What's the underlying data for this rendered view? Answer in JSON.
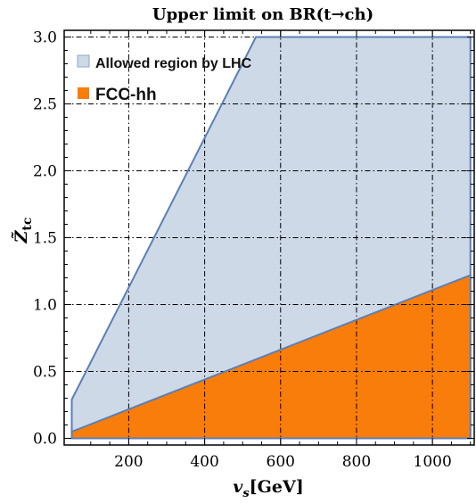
{
  "chart_data": {
    "type": "area",
    "title": "Upper limit on BR(t→ch)",
    "xlabel": {
      "main": "v",
      "sub": "s",
      "rest": "[GeV]"
    },
    "ylabel": {
      "main": "Z̃",
      "sub": "tc"
    },
    "xlim": [
      30,
      1110
    ],
    "ylim": [
      -0.05,
      3.05
    ],
    "xticks": [
      200,
      400,
      600,
      800,
      1000
    ],
    "xtick_labels": [
      "200",
      "400",
      "600",
      "800",
      "1000"
    ],
    "yticks": [
      0.0,
      0.5,
      1.0,
      1.5,
      2.0,
      2.5,
      3.0
    ],
    "ytick_labels": [
      "0.0",
      "0.5",
      "1.0",
      "1.5",
      "2.0",
      "2.5",
      "3.0"
    ],
    "grid": true,
    "legend_position": "top-left",
    "series": [
      {
        "name": "Allowed region by LHC",
        "kind": "polygon",
        "color": "#cdd9e6",
        "edge": "#5c7fb5",
        "x": [
          50,
          50,
          535,
          1100,
          1100,
          50
        ],
        "y": [
          0.0,
          0.29,
          3.0,
          3.0,
          0.0,
          0.0
        ]
      },
      {
        "name": "FCC-hh",
        "kind": "polygon",
        "color": "#f97d0b",
        "edge": "#5c7fb5",
        "x": [
          50,
          1100,
          1100,
          50
        ],
        "y": [
          0.05,
          1.22,
          0.0,
          0.0
        ]
      }
    ]
  }
}
